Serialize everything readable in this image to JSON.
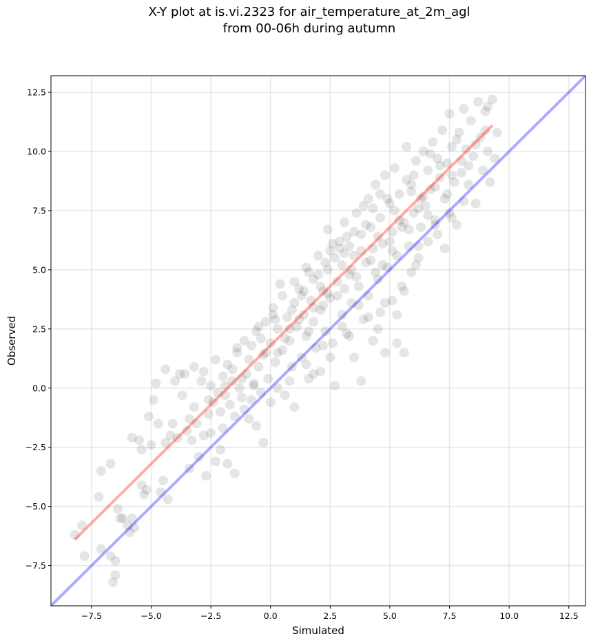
{
  "chart_data": {
    "type": "scatter",
    "title_line1": "X-Y plot at is.vi.2323 for air_temperature_at_2m_agl",
    "title_line2": "from 00-06h during autumn",
    "xlabel": "Simulated",
    "ylabel": "Observed",
    "xlim": [
      -9.2,
      13.2
    ],
    "ylim": [
      -9.2,
      13.2
    ],
    "xticks": [
      -7.5,
      -5.0,
      -2.5,
      0.0,
      2.5,
      5.0,
      7.5,
      10.0,
      12.5
    ],
    "yticks": [
      -7.5,
      -5.0,
      -2.5,
      0.0,
      2.5,
      5.0,
      7.5,
      10.0,
      12.5
    ],
    "xtick_labels": [
      "−7.5",
      "−5.0",
      "−2.5",
      "0.0",
      "2.5",
      "5.0",
      "7.5",
      "10.0",
      "12.5"
    ],
    "ytick_labels": [
      "−7.5",
      "−5.0",
      "−2.5",
      "0.0",
      "2.5",
      "5.0",
      "7.5",
      "10.0",
      "12.5"
    ],
    "grid": true,
    "point_color": "#000000",
    "fit_line": {
      "color": "#ff0000",
      "x": [
        -8.2,
        9.3
      ],
      "y": [
        -6.4,
        11.1
      ]
    },
    "identity_line": {
      "color": "#0000ff",
      "x": [
        -9.2,
        13.2
      ],
      "y": [
        -9.2,
        13.2
      ]
    },
    "points": [
      [
        -8.2,
        -6.2
      ],
      [
        -7.9,
        -5.8
      ],
      [
        -7.8,
        -7.1
      ],
      [
        -7.2,
        -4.6
      ],
      [
        -7.1,
        -3.5
      ],
      [
        -7.1,
        -6.8
      ],
      [
        -6.7,
        -3.2
      ],
      [
        -6.7,
        -7.1
      ],
      [
        -6.6,
        -8.2
      ],
      [
        -6.5,
        -7.3
      ],
      [
        -6.5,
        -7.9
      ],
      [
        -6.4,
        -5.1
      ],
      [
        -6.3,
        -5.5
      ],
      [
        -6.2,
        -5.5
      ],
      [
        -6.0,
        -5.8
      ],
      [
        -5.9,
        -6.1
      ],
      [
        -5.8,
        -2.1
      ],
      [
        -5.8,
        -5.5
      ],
      [
        -5.7,
        -5.9
      ],
      [
        -5.5,
        -2.2
      ],
      [
        -5.4,
        -2.6
      ],
      [
        -5.4,
        -4.1
      ],
      [
        -5.3,
        -4.5
      ],
      [
        -5.2,
        -4.3
      ],
      [
        -5.1,
        -1.2
      ],
      [
        -5.0,
        -2.4
      ],
      [
        -4.9,
        -0.5
      ],
      [
        -4.8,
        0.2
      ],
      [
        -4.7,
        -1.5
      ],
      [
        -4.6,
        -4.4
      ],
      [
        -4.5,
        -3.9
      ],
      [
        -4.4,
        0.8
      ],
      [
        -4.4,
        -2.3
      ],
      [
        -4.3,
        -4.7
      ],
      [
        -4.2,
        -2.0
      ],
      [
        -4.1,
        -1.5
      ],
      [
        -4.0,
        0.3
      ],
      [
        -3.9,
        -2.1
      ],
      [
        -3.8,
        0.6
      ],
      [
        -3.7,
        -0.3
      ],
      [
        -3.6,
        0.6
      ],
      [
        -3.5,
        -1.8
      ],
      [
        -3.4,
        -3.4
      ],
      [
        -3.3,
        -2.2
      ],
      [
        -3.2,
        -0.8
      ],
      [
        -3.2,
        0.9
      ],
      [
        -3.1,
        -1.5
      ],
      [
        -3.0,
        -2.9
      ],
      [
        -2.9,
        0.3
      ],
      [
        -2.8,
        -2.0
      ],
      [
        -2.7,
        -3.7
      ],
      [
        -2.6,
        -1.1
      ],
      [
        -2.5,
        0.1
      ],
      [
        -2.5,
        -1.9
      ],
      [
        -2.4,
        -0.6
      ],
      [
        -2.3,
        1.2
      ],
      [
        -2.3,
        -3.1
      ],
      [
        -2.2,
        -0.2
      ],
      [
        -2.1,
        -2.6
      ],
      [
        -2.0,
        0.5
      ],
      [
        -2.0,
        -1.7
      ],
      [
        -1.9,
        -0.3
      ],
      [
        -1.8,
        1.0
      ],
      [
        -1.8,
        -3.2
      ],
      [
        -1.7,
        -0.7
      ],
      [
        -1.6,
        0.3
      ],
      [
        -1.5,
        -1.2
      ],
      [
        -1.5,
        -3.6
      ],
      [
        -1.4,
        1.5
      ],
      [
        -1.3,
        0.0
      ],
      [
        -1.2,
        -0.4
      ],
      [
        -1.1,
        2.0
      ],
      [
        -1.1,
        -0.9
      ],
      [
        -1.0,
        0.6
      ],
      [
        -0.9,
        -1.3
      ],
      [
        -0.8,
        1.8
      ],
      [
        -0.8,
        -0.5
      ],
      [
        -0.7,
        0.1
      ],
      [
        -0.6,
        2.4
      ],
      [
        -0.6,
        -1.6
      ],
      [
        -0.5,
        0.9
      ],
      [
        -0.4,
        -0.2
      ],
      [
        -0.3,
        1.4
      ],
      [
        -0.3,
        -2.3
      ],
      [
        -0.2,
        2.8
      ],
      [
        -0.1,
        0.4
      ],
      [
        0.0,
        1.9
      ],
      [
        0.0,
        -0.6
      ],
      [
        0.1,
        3.4
      ],
      [
        0.2,
        1.1
      ],
      [
        0.3,
        0.0
      ],
      [
        0.3,
        2.5
      ],
      [
        0.4,
        4.4
      ],
      [
        0.5,
        1.6
      ],
      [
        0.6,
        -0.3
      ],
      [
        0.7,
        3.0
      ],
      [
        0.8,
        2.0
      ],
      [
        0.9,
        0.9
      ],
      [
        1.0,
        3.6
      ],
      [
        1.0,
        -0.8
      ],
      [
        1.1,
        2.6
      ],
      [
        1.2,
        4.2
      ],
      [
        1.3,
        1.3
      ],
      [
        1.4,
        3.1
      ],
      [
        1.5,
        5.1
      ],
      [
        1.5,
        2.2
      ],
      [
        1.6,
        0.4
      ],
      [
        1.7,
        3.7
      ],
      [
        1.8,
        4.6
      ],
      [
        1.8,
        2.8
      ],
      [
        1.9,
        1.7
      ],
      [
        2.0,
        5.6
      ],
      [
        2.1,
        3.3
      ],
      [
        2.1,
        0.7
      ],
      [
        2.2,
        4.1
      ],
      [
        2.3,
        2.4
      ],
      [
        2.4,
        6.7
      ],
      [
        2.4,
        5.0
      ],
      [
        2.5,
        3.8
      ],
      [
        2.6,
        1.9
      ],
      [
        2.7,
        5.5
      ],
      [
        2.7,
        0.1
      ],
      [
        2.8,
        4.5
      ],
      [
        2.9,
        6.2
      ],
      [
        3.0,
        3.1
      ],
      [
        3.0,
        5.2
      ],
      [
        3.1,
        7.0
      ],
      [
        3.2,
        2.3
      ],
      [
        3.3,
        4.8
      ],
      [
        3.3,
        6.0
      ],
      [
        3.4,
        3.6
      ],
      [
        3.5,
        5.6
      ],
      [
        3.5,
        1.3
      ],
      [
        3.6,
        7.4
      ],
      [
        3.7,
        4.3
      ],
      [
        3.8,
        6.5
      ],
      [
        3.8,
        0.3
      ],
      [
        3.9,
        2.9
      ],
      [
        4.0,
        5.3
      ],
      [
        4.1,
        8.0
      ],
      [
        4.1,
        3.9
      ],
      [
        4.2,
        6.8
      ],
      [
        4.3,
        2.0
      ],
      [
        4.3,
        5.9
      ],
      [
        4.4,
        8.6
      ],
      [
        4.5,
        4.6
      ],
      [
        4.6,
        7.2
      ],
      [
        4.6,
        3.2
      ],
      [
        4.7,
        6.1
      ],
      [
        4.8,
        9.0
      ],
      [
        4.8,
        1.5
      ],
      [
        4.9,
        5.1
      ],
      [
        5.0,
        7.8
      ],
      [
        5.1,
        3.7
      ],
      [
        5.1,
        6.6
      ],
      [
        5.2,
        9.3
      ],
      [
        5.3,
        1.9
      ],
      [
        5.3,
        5.6
      ],
      [
        5.4,
        8.2
      ],
      [
        5.5,
        4.3
      ],
      [
        5.6,
        7.0
      ],
      [
        5.6,
        1.5
      ],
      [
        5.7,
        10.2
      ],
      [
        5.8,
        6.0
      ],
      [
        5.9,
        8.6
      ],
      [
        5.9,
        4.9
      ],
      [
        6.0,
        7.4
      ],
      [
        6.1,
        9.6
      ],
      [
        6.2,
        5.5
      ],
      [
        6.3,
        8.0
      ],
      [
        6.3,
        6.8
      ],
      [
        6.4,
        10.0
      ],
      [
        6.5,
        7.7
      ],
      [
        6.6,
        9.2
      ],
      [
        6.6,
        6.2
      ],
      [
        6.7,
        8.4
      ],
      [
        6.8,
        10.4
      ],
      [
        6.9,
        7.1
      ],
      [
        7.0,
        9.7
      ],
      [
        7.0,
        6.5
      ],
      [
        7.1,
        8.9
      ],
      [
        7.2,
        10.9
      ],
      [
        7.3,
        8.0
      ],
      [
        7.3,
        5.9
      ],
      [
        7.4,
        9.5
      ],
      [
        7.5,
        11.6
      ],
      [
        7.5,
        7.4
      ],
      [
        7.6,
        10.2
      ],
      [
        7.7,
        8.7
      ],
      [
        7.8,
        6.9
      ],
      [
        7.9,
        10.8
      ],
      [
        8.0,
        9.1
      ],
      [
        8.1,
        11.8
      ],
      [
        8.1,
        7.9
      ],
      [
        8.2,
        10.1
      ],
      [
        8.3,
        8.6
      ],
      [
        8.4,
        11.3
      ],
      [
        8.5,
        9.8
      ],
      [
        8.6,
        7.8
      ],
      [
        8.7,
        12.1
      ],
      [
        8.8,
        10.6
      ],
      [
        8.9,
        9.2
      ],
      [
        9.0,
        11.7
      ],
      [
        9.1,
        10.0
      ],
      [
        9.2,
        8.7
      ],
      [
        9.3,
        12.2
      ],
      [
        9.4,
        9.7
      ],
      [
        9.5,
        10.8
      ],
      [
        9.1,
        11.9
      ],
      [
        8.3,
        9.4
      ],
      [
        0.5,
        3.9
      ],
      [
        1.2,
        2.9
      ],
      [
        2.0,
        4.8
      ],
      [
        2.6,
        6.1
      ],
      [
        3.4,
        5.0
      ],
      [
        4.0,
        6.9
      ],
      [
        4.6,
        8.2
      ],
      [
        5.4,
        7.1
      ],
      [
        6.0,
        9.0
      ],
      [
        6.7,
        9.9
      ],
      [
        1.4,
        4.1
      ],
      [
        2.2,
        3.5
      ],
      [
        2.9,
        5.9
      ],
      [
        3.6,
        4.7
      ],
      [
        4.3,
        7.6
      ],
      [
        5.0,
        6.2
      ],
      [
        5.7,
        8.8
      ],
      [
        6.4,
        8.1
      ],
      [
        7.1,
        9.4
      ],
      [
        7.8,
        10.5
      ],
      [
        -0.4,
        2.1
      ],
      [
        0.2,
        2.9
      ],
      [
        0.9,
        3.3
      ],
      [
        1.6,
        2.4
      ],
      [
        2.3,
        5.3
      ],
      [
        3.1,
        4.2
      ],
      [
        3.8,
        5.8
      ],
      [
        4.5,
        6.4
      ],
      [
        5.2,
        7.5
      ],
      [
        5.9,
        8.3
      ],
      [
        -1.6,
        0.8
      ],
      [
        -0.9,
        1.2
      ],
      [
        -0.2,
        1.5
      ],
      [
        0.6,
        2.1
      ],
      [
        1.3,
        3.9
      ],
      [
        2.1,
        4.3
      ],
      [
        2.8,
        3.9
      ],
      [
        3.5,
        6.6
      ],
      [
        4.2,
        5.4
      ],
      [
        4.9,
        8.0
      ],
      [
        -2.6,
        -0.5
      ],
      [
        -1.9,
        0.1
      ],
      [
        -1.2,
        0.4
      ],
      [
        -0.5,
        2.6
      ],
      [
        0.3,
        1.5
      ],
      [
        1.0,
        4.5
      ],
      [
        1.8,
        3.4
      ],
      [
        2.5,
        5.8
      ],
      [
        3.2,
        6.4
      ],
      [
        3.9,
        7.7
      ],
      [
        -3.4,
        -1.3
      ],
      [
        -2.8,
        0.7
      ],
      [
        -2.1,
        -1.0
      ],
      [
        -1.4,
        1.7
      ],
      [
        -0.7,
        0.2
      ],
      [
        0.1,
        3.1
      ],
      [
        0.8,
        2.5
      ],
      [
        1.6,
        4.9
      ],
      [
        2.4,
        4.0
      ],
      [
        3.1,
        5.7
      ],
      [
        4.7,
        5.2
      ],
      [
        5.5,
        6.8
      ],
      [
        6.2,
        7.6
      ],
      [
        6.9,
        8.5
      ],
      [
        7.6,
        9.0
      ],
      [
        8.0,
        9.6
      ],
      [
        8.6,
        10.3
      ],
      [
        9.0,
        10.9
      ],
      [
        7.4,
        8.2
      ],
      [
        6.6,
        7.3
      ],
      [
        5.8,
        6.7
      ],
      [
        5.1,
        5.8
      ],
      [
        4.4,
        4.9
      ],
      [
        3.7,
        3.5
      ],
      [
        3.0,
        2.6
      ],
      [
        2.2,
        1.8
      ],
      [
        1.5,
        1.0
      ],
      [
        0.8,
        0.3
      ],
      [
        4.1,
        3.0
      ],
      [
        4.8,
        3.6
      ],
      [
        5.6,
        4.1
      ],
      [
        6.2,
        6.0
      ],
      [
        6.9,
        6.9
      ],
      [
        7.6,
        7.2
      ],
      [
        3.3,
        2.2
      ],
      [
        2.5,
        1.3
      ],
      [
        1.8,
        0.6
      ],
      [
        4.5,
        2.5
      ],
      [
        5.3,
        3.1
      ],
      [
        6.1,
        5.2
      ]
    ]
  }
}
